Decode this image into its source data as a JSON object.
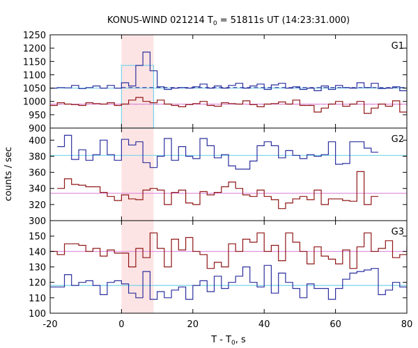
{
  "chart_data": {
    "type": "line",
    "title": "KONUS-WIND 021214 T",
    "title_sub": "0",
    "title_rest": " = 51811s UT (14:23:31.000)",
    "xlabel": "T - T",
    "xlabel_sub": "0",
    "xlabel_rest": ", s",
    "ylabel": "counts / sec",
    "xlim": [
      -20,
      80
    ],
    "x_ticks": [
      -20,
      0,
      20,
      40,
      60,
      80
    ],
    "highlight_interval": [
      0,
      9
    ],
    "highlight_color": "#fde4e4",
    "colors": {
      "blue": "#2b2f9e",
      "red": "#8f1414",
      "cyan": "#74d3ea",
      "violet": "#dd88dd"
    },
    "panels": [
      {
        "label": "G1",
        "ylim": [
          900,
          1250
        ],
        "y_ticks": [
          900,
          950,
          1000,
          1050,
          1100,
          1150,
          1200,
          1250
        ],
        "step_start": -20,
        "step_width": 2,
        "series": [
          {
            "name": "",
            "color": "blue",
            "values": [
              1050,
              1052,
              1051,
              1060,
              1048,
              1052,
              1058,
              1050,
              1060,
              1050,
              1070,
              1058,
              1135,
              1185,
              1115,
              1055,
              1045,
              1050,
              1052,
              1050,
              1055,
              1065,
              1050,
              1058,
              1050,
              1060,
              1068,
              1050,
              1058,
              1065,
              1045,
              1062,
              1068,
              1050,
              1055,
              1045,
              1050,
              1040,
              1058,
              1045,
              1060,
              1052,
              1050,
              1070,
              1052,
              1068,
              1048,
              1050,
              1055,
              1040
            ]
          },
          {
            "name": "",
            "color": "red",
            "values": [
              985,
              995,
              990,
              988,
              985,
              995,
              992,
              990,
              995,
              985,
              990,
              1005,
              1015,
              1000,
              995,
              1005,
              990,
              985,
              980,
              988,
              992,
              1000,
              985,
              982,
              995,
              992,
              990,
              1002,
              988,
              980,
              990,
              992,
              998,
              990,
              1005,
              985,
              985,
              960,
              975,
              990,
              1000,
              982,
              990,
              1000,
              955,
              975,
              990,
              982,
              1002,
              960
            ]
          }
        ],
        "refs": [
          {
            "color": "cyan",
            "value": 1050,
            "from": -20,
            "to": 80
          },
          {
            "color": "blue",
            "value": 1052,
            "from": 0,
            "to": 80,
            "dashed": true
          },
          {
            "color": "red",
            "value": 990,
            "from": -20,
            "to": 80,
            "dashed": true
          },
          {
            "color": "violet",
            "value": 990,
            "from": -20,
            "to": 80
          }
        ],
        "boxes": [
          {
            "color": "cyan",
            "x_start": 0,
            "x_end": 9,
            "value": 1135
          }
        ]
      },
      {
        "label": "G2",
        "ylim": [
          300,
          415
        ],
        "y_ticks": [
          300,
          320,
          340,
          360,
          380,
          400
        ],
        "step_start": -18,
        "step_width": 2,
        "series": [
          {
            "name": "",
            "color": "blue",
            "values": [
              392,
              406,
              376,
              388,
              375,
              382,
              400,
              382,
              375,
              401,
              394,
              398,
              372,
              366,
              380,
              402,
              375,
              392,
              380,
              377,
              402,
              393,
              378,
              382,
              368,
              364,
              364,
              374,
              393,
              398,
              393,
              378,
              387,
              381,
              377,
              382,
              380,
              382,
              398,
              370,
              371,
              398,
              398,
              390,
              385
            ]
          },
          {
            "name": "",
            "color": "red",
            "values": [
              340,
              352,
              345,
              344,
              342,
              342,
              335,
              330,
              325,
              332,
              327,
              326,
              338,
              340,
              338,
              320,
              335,
              338,
              322,
              320,
              336,
              332,
              335,
              342,
              348,
              340,
              332,
              330,
              338,
              330,
              326,
              315,
              322,
              327,
              330,
              326,
              338,
              320,
              327,
              327,
              325,
              324,
              361,
              320,
              330
            ]
          }
        ],
        "refs": [
          {
            "color": "cyan",
            "value": 381,
            "from": -20,
            "to": 80
          },
          {
            "color": "violet",
            "value": 334,
            "from": -20,
            "to": 80
          }
        ]
      },
      {
        "label": "G3",
        "ylim": [
          100,
          160
        ],
        "y_ticks": [
          100,
          110,
          120,
          130,
          140,
          150
        ],
        "step_start": -20,
        "step_width": 2,
        "series": [
          {
            "name": "",
            "color": "blue",
            "values": [
              117,
              117,
              125,
              118,
              120,
              121,
              118,
              112,
              120,
              121,
              119,
              113,
              110,
              127,
              109,
              114,
              110,
              115,
              117,
              109,
              118,
              121,
              114,
              124,
              116,
              120,
              124,
              130,
              120,
              117,
              131,
              113,
              126,
              120,
              116,
              110,
              119,
              116,
              116,
              109,
              116,
              122,
              126,
              127,
              128,
              129,
              112,
              115,
              120,
              117,
              112,
              110
            ]
          },
          {
            "name": "",
            "color": "red",
            "values": [
              140,
              138,
              145,
              145,
              144,
              140,
              142,
              137,
              141,
              139,
              139,
              130,
              142,
              136,
              152,
              142,
              130,
              148,
              141,
              149,
              140,
              138,
              129,
              133,
              130,
              145,
              140,
              148,
              146,
              152,
              140,
              144,
              134,
              152,
              146,
              140,
              132,
              143,
              137,
              135,
              132,
              141,
              129,
              143,
              152,
              140,
              142,
              147,
              136,
              138,
              143,
              141
            ]
          }
        ],
        "refs": [
          {
            "color": "cyan",
            "value": 118,
            "from": -20,
            "to": 80
          },
          {
            "color": "violet",
            "value": 140,
            "from": -20,
            "to": 80
          }
        ]
      }
    ]
  }
}
